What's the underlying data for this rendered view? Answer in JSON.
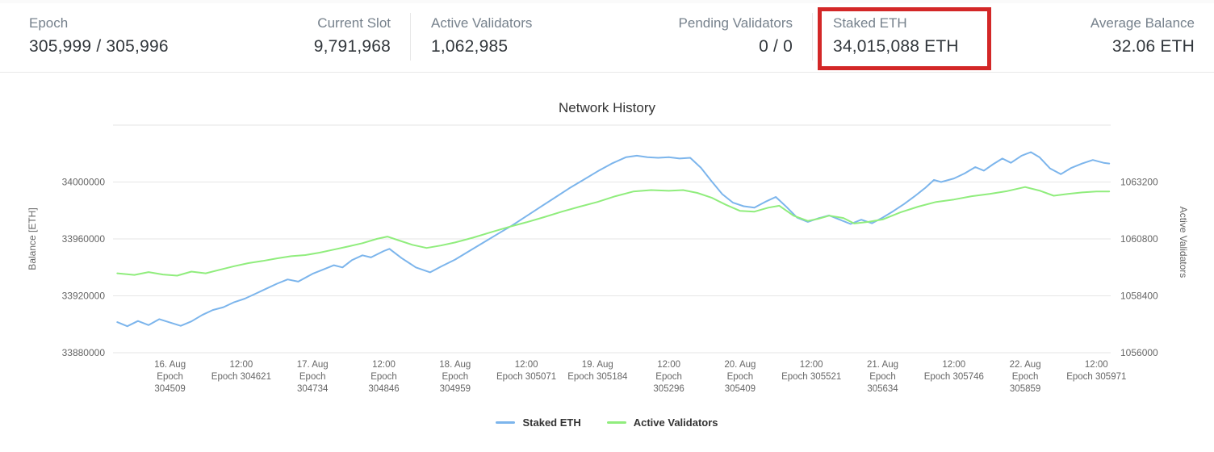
{
  "stats": {
    "epoch": {
      "label": "Epoch",
      "value": "305,999 / 305,996"
    },
    "current_slot": {
      "label": "Current Slot",
      "value": "9,791,968"
    },
    "active_validators": {
      "label": "Active Validators",
      "value": "1,062,985"
    },
    "pending_validators": {
      "label": "Pending Validators",
      "value": "0 / 0"
    },
    "staked_eth": {
      "label": "Staked ETH",
      "value": "34,015,088 ETH"
    },
    "average_balance": {
      "label": "Average Balance",
      "value": "32.06 ETH"
    }
  },
  "annotations": {
    "highlight_target": "Staked ETH",
    "highlight_color": "#d32727"
  },
  "chart_data": {
    "type": "line",
    "title": "Network History",
    "grid": true,
    "legend_position": "bottom",
    "x_unit": "index of x_labels (0 = '16. Aug', 13 = final '12:00')",
    "x_range": [
      -0.8,
      13.2
    ],
    "y_left": {
      "label": "Balance [ETH]",
      "min": 33880000,
      "max": 34040000,
      "ticks": [
        33880000,
        33920000,
        33960000,
        34000000
      ]
    },
    "y_right": {
      "label": "Active Validators",
      "min": 1056000,
      "max": 1065600,
      "ticks": [
        1056000,
        1058400,
        1060800,
        1063200
      ]
    },
    "gridlines_left": [
      33880000,
      33920000,
      33960000,
      34000000,
      34040000
    ],
    "x_labels": [
      {
        "lines": [
          "16. Aug",
          "Epoch",
          "304509"
        ]
      },
      {
        "lines": [
          "12:00",
          "Epoch 304621"
        ]
      },
      {
        "lines": [
          "17. Aug",
          "Epoch",
          "304734"
        ]
      },
      {
        "lines": [
          "12:00",
          "Epoch",
          "304846"
        ]
      },
      {
        "lines": [
          "18. Aug",
          "Epoch",
          "304959"
        ]
      },
      {
        "lines": [
          "12:00",
          "Epoch 305071"
        ]
      },
      {
        "lines": [
          "19. Aug",
          "Epoch 305184"
        ]
      },
      {
        "lines": [
          "12:00",
          "Epoch",
          "305296"
        ]
      },
      {
        "lines": [
          "20. Aug",
          "Epoch",
          "305409"
        ]
      },
      {
        "lines": [
          "12:00",
          "Epoch 305521"
        ]
      },
      {
        "lines": [
          "21. Aug",
          "Epoch",
          "305634"
        ]
      },
      {
        "lines": [
          "12:00",
          "Epoch 305746"
        ]
      },
      {
        "lines": [
          "22. Aug",
          "Epoch",
          "305859"
        ]
      },
      {
        "lines": [
          "12:00",
          "Epoch 305971"
        ]
      }
    ],
    "series": [
      {
        "name": "Staked ETH",
        "color": "#7cb5ec",
        "axis": "left",
        "points": [
          [
            -0.74,
            33901500
          ],
          [
            -0.6,
            33898600
          ],
          [
            -0.45,
            33902300
          ],
          [
            -0.3,
            33899400
          ],
          [
            -0.15,
            33903600
          ],
          [
            0,
            33901200
          ],
          [
            0.15,
            33898900
          ],
          [
            0.3,
            33902000
          ],
          [
            0.45,
            33906500
          ],
          [
            0.6,
            33910000
          ],
          [
            0.75,
            33912000
          ],
          [
            0.9,
            33915500
          ],
          [
            1.05,
            33918000
          ],
          [
            1.2,
            33921500
          ],
          [
            1.35,
            33925000
          ],
          [
            1.5,
            33928500
          ],
          [
            1.65,
            33931500
          ],
          [
            1.8,
            33930000
          ],
          [
            2,
            33935500
          ],
          [
            2.15,
            33938500
          ],
          [
            2.3,
            33941500
          ],
          [
            2.42,
            33940000
          ],
          [
            2.55,
            33945000
          ],
          [
            2.7,
            33948500
          ],
          [
            2.82,
            33947000
          ],
          [
            3,
            33951500
          ],
          [
            3.08,
            33953000
          ],
          [
            3.25,
            33946500
          ],
          [
            3.45,
            33940000
          ],
          [
            3.65,
            33936500
          ],
          [
            3.8,
            33940500
          ],
          [
            4,
            33945500
          ],
          [
            4.2,
            33951500
          ],
          [
            4.4,
            33957500
          ],
          [
            4.6,
            33963500
          ],
          [
            4.8,
            33969500
          ],
          [
            5,
            33976000
          ],
          [
            5.2,
            33982500
          ],
          [
            5.4,
            33989000
          ],
          [
            5.6,
            33995500
          ],
          [
            5.8,
            34001500
          ],
          [
            6,
            34007500
          ],
          [
            6.2,
            34013000
          ],
          [
            6.4,
            34017500
          ],
          [
            6.55,
            34018500
          ],
          [
            6.7,
            34017500
          ],
          [
            6.85,
            34017000
          ],
          [
            7,
            34017500
          ],
          [
            7.15,
            34016500
          ],
          [
            7.3,
            34017000
          ],
          [
            7.45,
            34010000
          ],
          [
            7.6,
            34000500
          ],
          [
            7.75,
            33991500
          ],
          [
            7.9,
            33985500
          ],
          [
            8.05,
            33983000
          ],
          [
            8.2,
            33982000
          ],
          [
            8.35,
            33986000
          ],
          [
            8.5,
            33989500
          ],
          [
            8.65,
            33982500
          ],
          [
            8.8,
            33975000
          ],
          [
            8.95,
            33972000
          ],
          [
            9.1,
            33974500
          ],
          [
            9.25,
            33976500
          ],
          [
            9.4,
            33973500
          ],
          [
            9.55,
            33970500
          ],
          [
            9.7,
            33973500
          ],
          [
            9.85,
            33971000
          ],
          [
            10,
            33975000
          ],
          [
            10.15,
            33979500
          ],
          [
            10.3,
            33984500
          ],
          [
            10.45,
            33990000
          ],
          [
            10.6,
            33996000
          ],
          [
            10.72,
            34001500
          ],
          [
            10.82,
            34000000
          ],
          [
            11,
            34002500
          ],
          [
            11.15,
            34006000
          ],
          [
            11.3,
            34010500
          ],
          [
            11.42,
            34008000
          ],
          [
            11.55,
            34012500
          ],
          [
            11.68,
            34016500
          ],
          [
            11.8,
            34013500
          ],
          [
            11.95,
            34018500
          ],
          [
            12.08,
            34021000
          ],
          [
            12.2,
            34017500
          ],
          [
            12.35,
            34009500
          ],
          [
            12.5,
            34005500
          ],
          [
            12.65,
            34010000
          ],
          [
            12.8,
            34013000
          ],
          [
            12.95,
            34015500
          ],
          [
            13.1,
            34013500
          ],
          [
            13.18,
            34013000
          ]
        ]
      },
      {
        "name": "Active Validators",
        "color": "#90ed7d",
        "axis": "right",
        "points": [
          [
            -0.74,
            1059350
          ],
          [
            -0.5,
            1059280
          ],
          [
            -0.3,
            1059400
          ],
          [
            -0.1,
            1059300
          ],
          [
            0.1,
            1059250
          ],
          [
            0.3,
            1059420
          ],
          [
            0.5,
            1059350
          ],
          [
            0.7,
            1059500
          ],
          [
            0.9,
            1059650
          ],
          [
            1.1,
            1059780
          ],
          [
            1.3,
            1059870
          ],
          [
            1.5,
            1059980
          ],
          [
            1.7,
            1060070
          ],
          [
            1.9,
            1060120
          ],
          [
            2.1,
            1060220
          ],
          [
            2.3,
            1060350
          ],
          [
            2.5,
            1060480
          ],
          [
            2.7,
            1060620
          ],
          [
            2.9,
            1060800
          ],
          [
            3.05,
            1060900
          ],
          [
            3.2,
            1060750
          ],
          [
            3.4,
            1060550
          ],
          [
            3.6,
            1060420
          ],
          [
            3.8,
            1060520
          ],
          [
            4,
            1060650
          ],
          [
            4.25,
            1060850
          ],
          [
            4.5,
            1061080
          ],
          [
            4.75,
            1061300
          ],
          [
            5,
            1061500
          ],
          [
            5.25,
            1061720
          ],
          [
            5.5,
            1061950
          ],
          [
            5.75,
            1062160
          ],
          [
            6,
            1062360
          ],
          [
            6.25,
            1062600
          ],
          [
            6.5,
            1062800
          ],
          [
            6.75,
            1062860
          ],
          [
            7,
            1062830
          ],
          [
            7.2,
            1062860
          ],
          [
            7.4,
            1062740
          ],
          [
            7.6,
            1062540
          ],
          [
            7.8,
            1062240
          ],
          [
            8,
            1061980
          ],
          [
            8.2,
            1061950
          ],
          [
            8.4,
            1062120
          ],
          [
            8.55,
            1062200
          ],
          [
            8.75,
            1061780
          ],
          [
            8.95,
            1061560
          ],
          [
            9.1,
            1061650
          ],
          [
            9.25,
            1061780
          ],
          [
            9.45,
            1061680
          ],
          [
            9.6,
            1061450
          ],
          [
            9.8,
            1061520
          ],
          [
            10,
            1061620
          ],
          [
            10.25,
            1061920
          ],
          [
            10.5,
            1062160
          ],
          [
            10.75,
            1062360
          ],
          [
            11,
            1062460
          ],
          [
            11.25,
            1062600
          ],
          [
            11.5,
            1062700
          ],
          [
            11.75,
            1062820
          ],
          [
            12,
            1062990
          ],
          [
            12.2,
            1062840
          ],
          [
            12.4,
            1062620
          ],
          [
            12.6,
            1062700
          ],
          [
            12.8,
            1062760
          ],
          [
            13,
            1062800
          ],
          [
            13.18,
            1062800
          ]
        ]
      }
    ]
  }
}
